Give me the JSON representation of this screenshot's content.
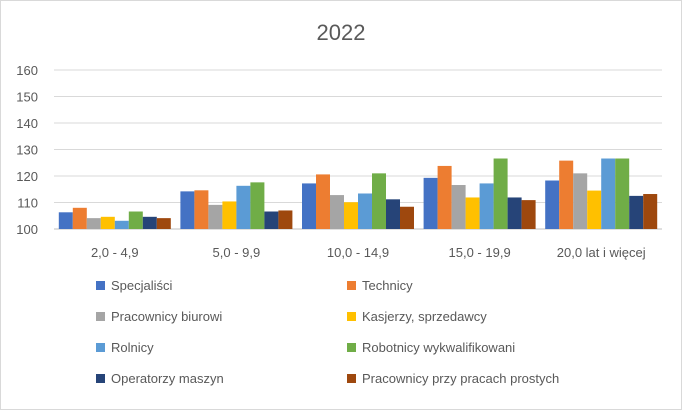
{
  "chart_data": {
    "type": "bar",
    "title": "2022",
    "xlabel": "",
    "ylabel": "",
    "ylim": [
      100,
      160
    ],
    "yticks": [
      100,
      110,
      120,
      130,
      140,
      150,
      160
    ],
    "grid": true,
    "legend_position": "bottom",
    "categories": [
      "2,0 - 4,9",
      "5,0 - 9,9",
      "10,0 - 14,9",
      "15,0 - 19,9",
      "20,0 lat i więcej"
    ],
    "series": [
      {
        "name": "Specjaliści",
        "color": "#4472C4",
        "values": [
          106.3,
          114.2,
          117.2,
          119.3,
          118.3
        ]
      },
      {
        "name": "Technicy",
        "color": "#ED7D31",
        "values": [
          108.0,
          114.6,
          120.6,
          123.8,
          125.8
        ]
      },
      {
        "name": "Pracownicy biurowi",
        "color": "#A5A5A5",
        "values": [
          104.1,
          109.1,
          112.8,
          116.6,
          121.0
        ]
      },
      {
        "name": "Kasjerzy, sprzedawcy",
        "color": "#FFC000",
        "values": [
          104.6,
          110.4,
          110.1,
          111.9,
          114.5
        ]
      },
      {
        "name": "Rolnicy",
        "color": "#5B9BD5",
        "values": [
          103.1,
          116.3,
          113.4,
          117.2,
          126.6
        ]
      },
      {
        "name": "Robotnicy wykwalifikowani",
        "color": "#70AD47",
        "values": [
          106.6,
          117.6,
          121.0,
          126.6,
          126.6
        ]
      },
      {
        "name": "Operatorzy maszyn",
        "color": "#264478",
        "values": [
          104.6,
          106.6,
          111.2,
          111.9,
          112.5
        ]
      },
      {
        "name": "Pracownicy przy pracach prostych",
        "color": "#9E480E",
        "values": [
          104.1,
          107.0,
          108.4,
          110.9,
          113.2
        ]
      }
    ]
  }
}
